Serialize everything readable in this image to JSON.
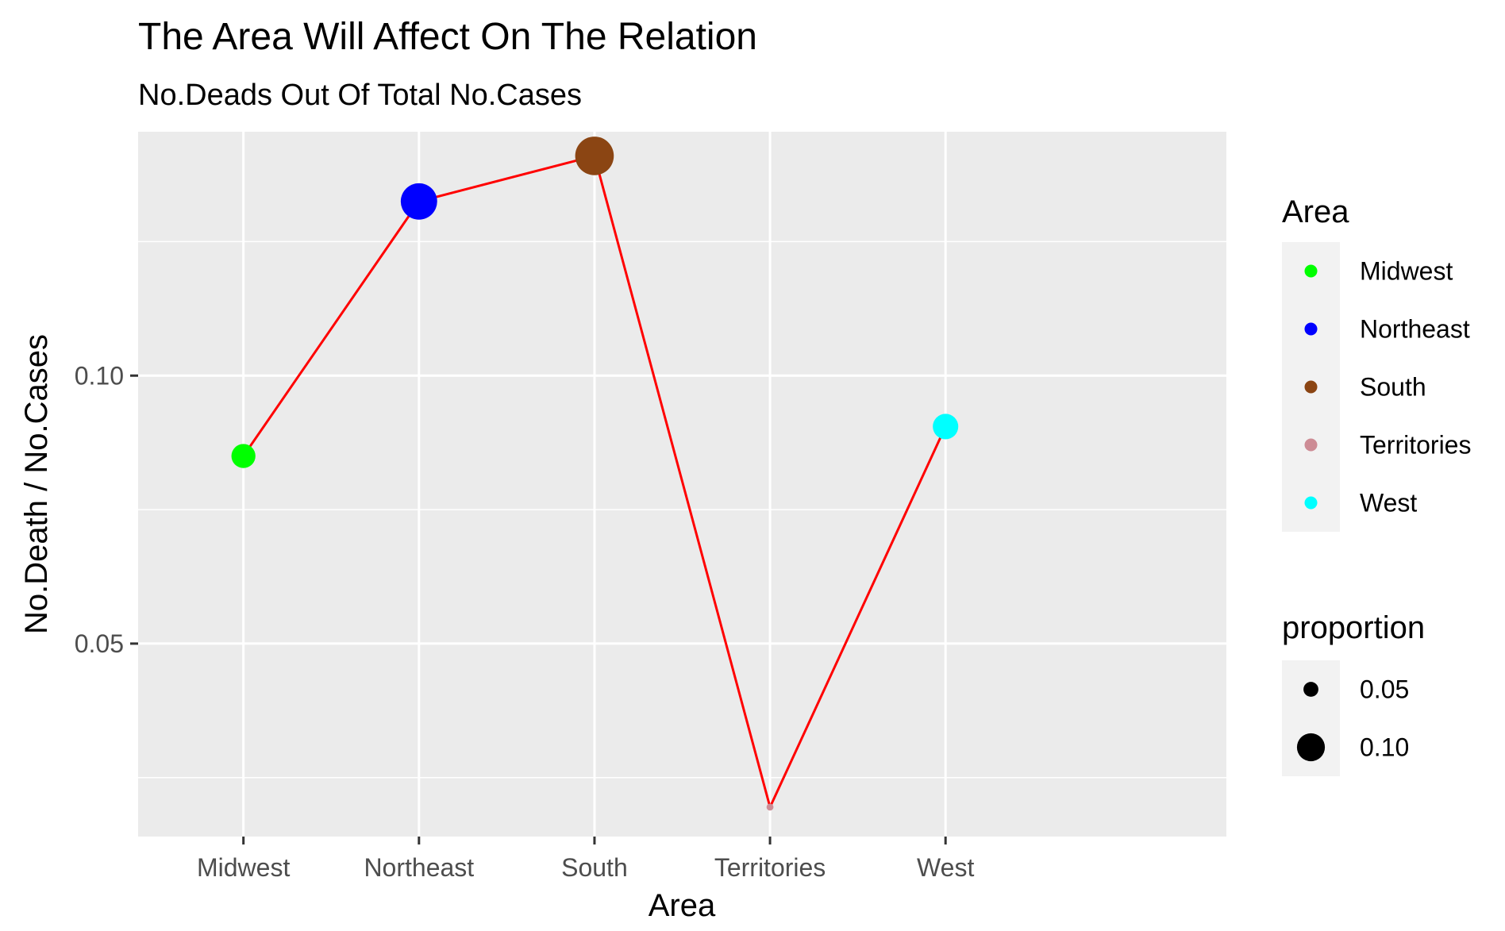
{
  "chart_data": {
    "type": "scatter",
    "title": "The Area Will Affect On The Relation",
    "subtitle": "No.Deads Out Of Total No.Cases",
    "xlabel": "Area",
    "ylabel": "No.Death / No.Cases",
    "categories": [
      "Midwest",
      "Northeast",
      "South",
      "Territories",
      "West"
    ],
    "values": [
      0.085,
      0.1325,
      0.141,
      0.0195,
      0.0905
    ],
    "point_colors": [
      "#00ff00",
      "#0000ff",
      "#8b4513",
      "#cd8c95",
      "#00ffff"
    ],
    "line_color": "#ff0000",
    "ylim": [
      0.014,
      0.1455
    ],
    "yticks": [
      0.05,
      0.1
    ],
    "ytick_labels": [
      "0.05",
      "0.10"
    ],
    "grid": true,
    "panel_background": "#ebebeb",
    "legend_position": "right",
    "legends": {
      "color": {
        "title": "Area",
        "entries": [
          {
            "label": "Midwest",
            "color": "#00ff00"
          },
          {
            "label": "Northeast",
            "color": "#0000ff"
          },
          {
            "label": "South",
            "color": "#8b4513"
          },
          {
            "label": "Territories",
            "color": "#cd8c95"
          },
          {
            "label": "West",
            "color": "#00ffff"
          }
        ]
      },
      "size": {
        "title": "proportion",
        "entries": [
          {
            "label": "0.05",
            "value": 0.05
          },
          {
            "label": "0.10",
            "value": 0.1
          }
        ]
      }
    }
  }
}
